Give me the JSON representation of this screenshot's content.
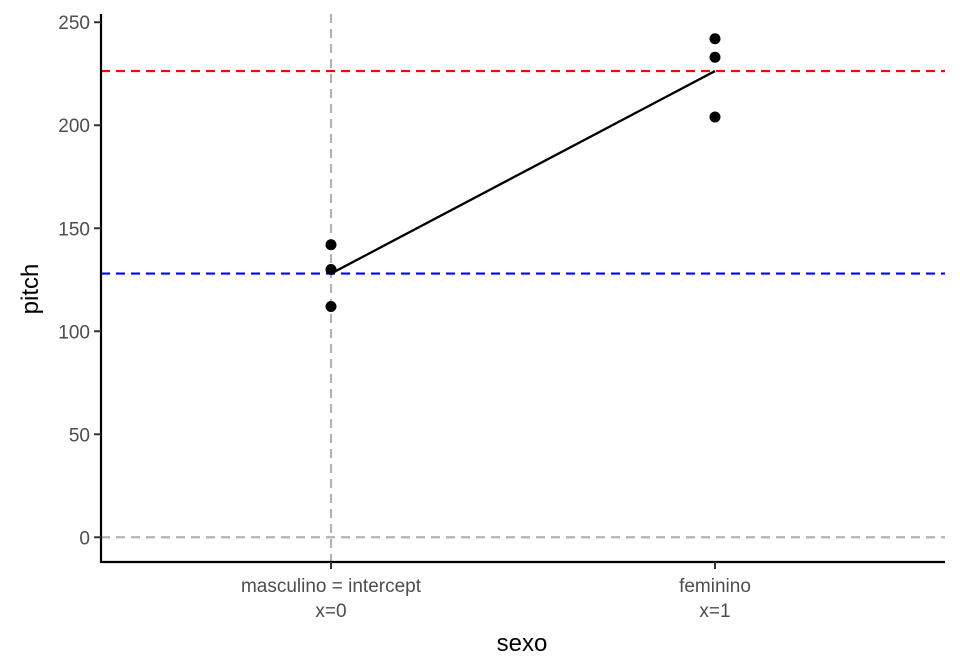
{
  "chart_data": {
    "type": "scatter",
    "xlabel": "sexo",
    "ylabel": "pitch",
    "ylim": [
      -12,
      254
    ],
    "yticks": [
      0,
      50,
      100,
      150,
      200,
      250
    ],
    "categories": [
      {
        "x": 0,
        "label_line1": "masculino = intercept",
        "label_line2": "x=0"
      },
      {
        "x": 1,
        "label_line1": "feminino",
        "label_line2": "x=1"
      }
    ],
    "points": [
      {
        "x": 0,
        "y": 142
      },
      {
        "x": 0,
        "y": 130
      },
      {
        "x": 0,
        "y": 112
      },
      {
        "x": 1,
        "y": 242
      },
      {
        "x": 1,
        "y": 233
      },
      {
        "x": 1,
        "y": 204
      }
    ],
    "fit_line": {
      "x0": 0,
      "y0": 128,
      "x1": 1,
      "y1": 226.3
    },
    "reference_lines": [
      {
        "orientation": "horizontal",
        "value": 226.3,
        "color": "#ff0000",
        "style": "dashed"
      },
      {
        "orientation": "horizontal",
        "value": 128,
        "color": "#0000ff",
        "style": "dashed"
      },
      {
        "orientation": "horizontal",
        "value": 0,
        "color": "#b3b3b3",
        "style": "dashed"
      },
      {
        "orientation": "vertical",
        "value": 0,
        "color": "#b3b3b3",
        "style": "dashed"
      }
    ],
    "grid": false,
    "legend": "none"
  }
}
